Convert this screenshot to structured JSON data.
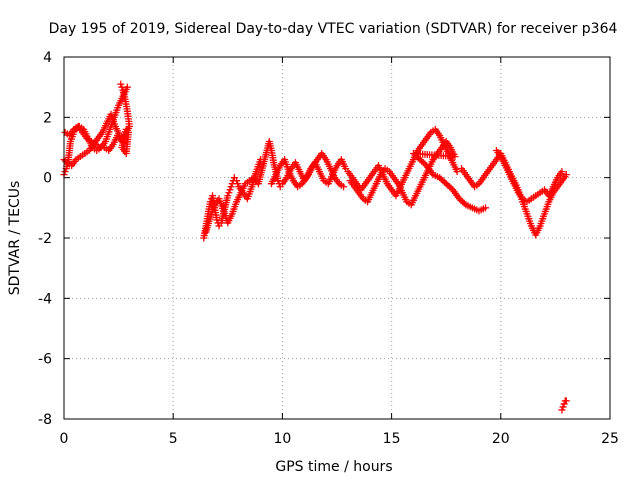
{
  "chart_data": {
    "type": "scatter",
    "title": "Day 195 of 2019, Sidereal Day-to-day VTEC variation (SDTVAR) for receiver p364",
    "xlabel": "GPS time / hours",
    "ylabel": "SDTVAR / TECUs",
    "xlim": [
      0,
      25
    ],
    "ylim": [
      -8,
      4
    ],
    "x_ticks": [
      0,
      5,
      10,
      15,
      20,
      25
    ],
    "x_tick_labels": [
      "0",
      "5",
      "10",
      "15",
      "20",
      "25"
    ],
    "y_ticks": [
      -8,
      -6,
      -4,
      -2,
      0,
      2,
      4
    ],
    "y_tick_labels": [
      "-8",
      "-6",
      "-4",
      "-2",
      "0",
      "2",
      "4"
    ],
    "grid": true,
    "marker": "+",
    "series": [
      {
        "name": "SDTVAR",
        "color": "#ff0000",
        "x": [
          0.0,
          0.1,
          0.2,
          0.3,
          0.5,
          0.7,
          0.9,
          1.1,
          1.3,
          1.5,
          1.7,
          1.9,
          2.1,
          2.3,
          2.5,
          2.7,
          2.9,
          0.0,
          0.15,
          0.35,
          0.55,
          0.75,
          0.95,
          1.15,
          1.35,
          1.55,
          1.75,
          1.95,
          2.15,
          2.35,
          2.55,
          2.6,
          2.7,
          2.8,
          2.9,
          3.0,
          2.75,
          2.65,
          2.85,
          2.95,
          0.05,
          0.25,
          0.45,
          0.65,
          0.85,
          1.05,
          1.25,
          1.45,
          1.65,
          1.85,
          2.05,
          2.25,
          2.45,
          2.65,
          2.85,
          6.4,
          6.5,
          6.6,
          6.7,
          6.8,
          6.9,
          7.0,
          7.1,
          7.2,
          7.3,
          7.4,
          7.5,
          7.6,
          7.7,
          7.8,
          7.9,
          8.0,
          8.2,
          8.4,
          8.6,
          8.8,
          9.0,
          6.5,
          6.7,
          6.9,
          7.1,
          7.3,
          7.5,
          7.7,
          7.9,
          8.1,
          8.3,
          8.5,
          8.7,
          8.9,
          9.4,
          9.5,
          9.6,
          9.7,
          9.8,
          9.9,
          10.0,
          10.2,
          10.4,
          10.6,
          10.8,
          11.0,
          11.2,
          11.4,
          11.6,
          11.8,
          12.0,
          12.2,
          12.4,
          12.6,
          12.8,
          9.5,
          9.7,
          9.9,
          10.1,
          10.3,
          10.5,
          10.7,
          10.9,
          11.1,
          11.3,
          11.5,
          11.7,
          11.9,
          12.1,
          12.3,
          12.5,
          12.7,
          12.9,
          13.0,
          13.2,
          13.4,
          13.6,
          13.8,
          14.0,
          14.2,
          14.4,
          14.6,
          14.8,
          15.0,
          15.2,
          15.4,
          15.6,
          15.8,
          16.0,
          16.2,
          16.4,
          16.6,
          16.8,
          17.0,
          17.2,
          17.4,
          17.6,
          17.8,
          18.0,
          13.1,
          13.3,
          13.5,
          13.7,
          13.9,
          14.1,
          14.3,
          14.5,
          14.7,
          14.9,
          15.1,
          15.3,
          15.5,
          15.7,
          15.9,
          16.1,
          16.3,
          16.5,
          16.7,
          16.9,
          17.1,
          17.3,
          17.5,
          17.7,
          17.9,
          16.0,
          16.3,
          16.6,
          16.9,
          17.2,
          17.5,
          17.8,
          18.1,
          18.4,
          18.7,
          19.0,
          19.3,
          18.2,
          18.4,
          18.6,
          18.8,
          19.0,
          19.2,
          19.4,
          19.6,
          19.8,
          20.0,
          20.2,
          20.4,
          20.6,
          20.8,
          21.0,
          21.2,
          21.4,
          21.6,
          21.8,
          22.0,
          22.2,
          22.4,
          22.6,
          22.8,
          23.0,
          19.8,
          20.0,
          20.2,
          20.4,
          20.6,
          20.8,
          21.0,
          21.2,
          21.4,
          21.6,
          21.8,
          22.0,
          22.2,
          22.4,
          22.6,
          22.8,
          22.8,
          22.85,
          22.9,
          22.95,
          23.0
        ],
        "y": [
          0.1,
          0.3,
          0.6,
          1.2,
          1.6,
          1.7,
          1.6,
          1.3,
          1.0,
          0.9,
          1.0,
          1.2,
          1.6,
          2.0,
          2.4,
          2.7,
          3.0,
          0.6,
          0.5,
          0.4,
          0.6,
          0.7,
          0.8,
          0.9,
          1.1,
          1.3,
          1.5,
          1.8,
          2.1,
          1.7,
          1.4,
          3.1,
          2.9,
          2.6,
          2.2,
          1.7,
          1.3,
          1.0,
          0.8,
          1.5,
          1.5,
          1.4,
          1.6,
          1.7,
          1.5,
          1.3,
          1.2,
          1.1,
          1.0,
          1.0,
          0.9,
          1.1,
          1.4,
          1.2,
          1.6,
          -2.0,
          -1.6,
          -1.2,
          -0.8,
          -0.6,
          -1.0,
          -1.4,
          -1.6,
          -1.5,
          -1.2,
          -0.9,
          -0.6,
          -0.4,
          -0.2,
          0.0,
          -0.1,
          -0.3,
          -0.5,
          -0.7,
          -0.3,
          0.2,
          0.6,
          -1.8,
          -1.3,
          -0.9,
          -0.7,
          -1.1,
          -1.5,
          -1.2,
          -0.8,
          -0.5,
          -0.2,
          -0.1,
          0.0,
          -0.2,
          1.2,
          0.9,
          0.5,
          0.2,
          -0.1,
          -0.3,
          -0.2,
          0.0,
          0.3,
          0.5,
          0.2,
          -0.1,
          0.1,
          0.4,
          0.6,
          0.8,
          0.6,
          0.3,
          0.0,
          -0.2,
          -0.3,
          -0.2,
          0.1,
          0.4,
          0.6,
          0.2,
          -0.1,
          -0.3,
          -0.2,
          0.0,
          0.3,
          0.5,
          0.2,
          -0.1,
          -0.2,
          0.1,
          0.4,
          0.6,
          0.3,
          0.2,
          0.0,
          -0.2,
          -0.4,
          -0.2,
          0.0,
          0.2,
          0.4,
          0.1,
          -0.2,
          -0.4,
          -0.6,
          -0.3,
          0.0,
          0.3,
          0.6,
          0.9,
          1.1,
          1.3,
          1.5,
          1.6,
          1.4,
          1.1,
          0.8,
          0.5,
          0.2,
          -0.1,
          -0.3,
          -0.5,
          -0.7,
          -0.8,
          -0.5,
          -0.2,
          0.1,
          0.3,
          0.2,
          0.0,
          -0.2,
          -0.5,
          -0.8,
          -0.9,
          -0.6,
          -0.3,
          0.0,
          0.3,
          0.6,
          0.8,
          1.0,
          1.2,
          1.0,
          0.7,
          0.8,
          0.6,
          0.4,
          0.1,
          0.0,
          -0.2,
          -0.4,
          -0.7,
          -0.9,
          -1.0,
          -1.1,
          -1.0,
          0.3,
          0.1,
          -0.1,
          -0.3,
          -0.2,
          0.0,
          0.2,
          0.4,
          0.6,
          0.8,
          0.5,
          0.2,
          -0.1,
          -0.4,
          -0.8,
          -1.2,
          -1.6,
          -1.9,
          -1.6,
          -1.2,
          -0.8,
          -0.5,
          -0.3,
          -0.1,
          0.1,
          0.9,
          0.7,
          0.4,
          0.1,
          -0.2,
          -0.5,
          -0.7,
          -0.8,
          -0.7,
          -0.6,
          -0.5,
          -0.4,
          -0.6,
          -0.3,
          0.0,
          0.2,
          -7.7,
          -7.6,
          -7.5,
          -7.4,
          -7.4
        ]
      }
    ]
  }
}
